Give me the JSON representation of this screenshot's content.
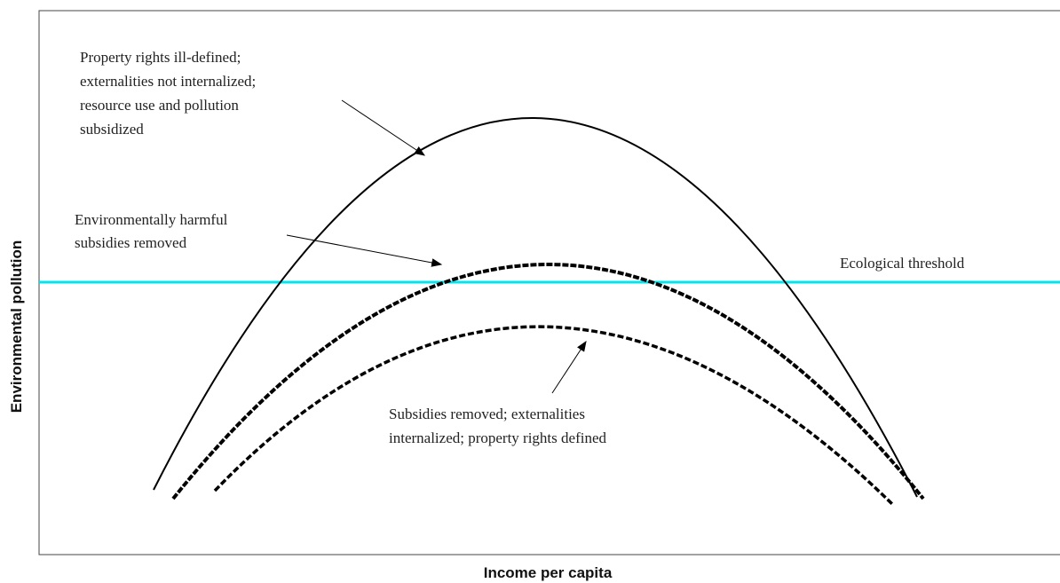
{
  "axes": {
    "x_label": "Income per capita",
    "y_label": "Environmental pollution"
  },
  "annotations": [
    {
      "lines": [
        "Property rights ill-defined;",
        "externalities not internalized;",
        "resource use and pollution",
        "subsidized"
      ]
    },
    {
      "lines": [
        "Environmentally harmful",
        "subsidies removed"
      ]
    },
    {
      "lines": [
        "Ecological threshold"
      ]
    },
    {
      "lines": [
        "Subsidies removed; externalities",
        "internalized; property rights defined"
      ]
    }
  ]
}
